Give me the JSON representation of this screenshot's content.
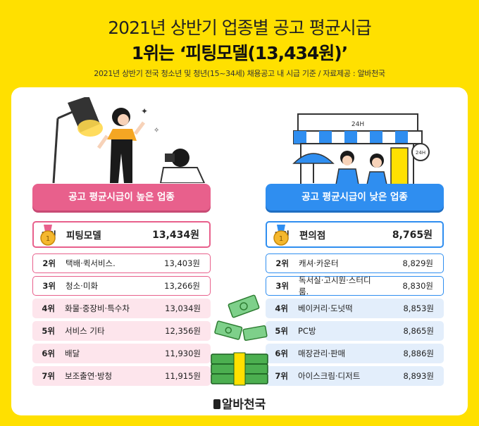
{
  "header": {
    "title_line1": "2021년 상반기 업종별 공고 평균시급",
    "title_line2": "1위는 ‘피팅모델(13,434원)’",
    "source": "2021년 상반기 전국 청소년 및 청년(15~34세) 채용공고 내 시급 기준 / 자료제공 : 알바천국"
  },
  "high": {
    "header": "공고 평균시급이 높은 업종",
    "rows": [
      {
        "rank": "1위",
        "name": "피팅모델",
        "value": "13,434원"
      },
      {
        "rank": "2위",
        "name": "택배·퀵서비스.",
        "value": "13,403원"
      },
      {
        "rank": "3위",
        "name": "청소·미화",
        "value": "13,266원"
      },
      {
        "rank": "4위",
        "name": "화물·중장비·특수차",
        "value": "13,034원"
      },
      {
        "rank": "5위",
        "name": "서비스 기타",
        "value": "12,356원"
      },
      {
        "rank": "6위",
        "name": "배달",
        "value": "11,930원"
      },
      {
        "rank": "7위",
        "name": "보조출연·방청",
        "value": "11,915원"
      }
    ]
  },
  "low": {
    "header": "공고 평균시급이 낮은 업종",
    "rows": [
      {
        "rank": "1위",
        "name": "편의점",
        "value": "8,765원"
      },
      {
        "rank": "2위",
        "name": "캐셔·카운터",
        "value": "8,829원"
      },
      {
        "rank": "3위",
        "name": "독서실·고시원·스터디룸.",
        "value": "8,830원"
      },
      {
        "rank": "4위",
        "name": "베이커리·도넛떡",
        "value": "8,853원"
      },
      {
        "rank": "5위",
        "name": "PC방",
        "value": "8,865원"
      },
      {
        "rank": "6위",
        "name": "매장관리·판매",
        "value": "8,886원"
      },
      {
        "rank": "7위",
        "name": "아이스크림·디저트",
        "value": "8,893원"
      }
    ]
  },
  "store_sign": "24H",
  "store_clock": "24H",
  "logo": "알바천국",
  "colors": {
    "background": "#FFE000",
    "high_accent": "#E8608C",
    "low_accent": "#2F8EF0",
    "money": "#4CAF50"
  }
}
